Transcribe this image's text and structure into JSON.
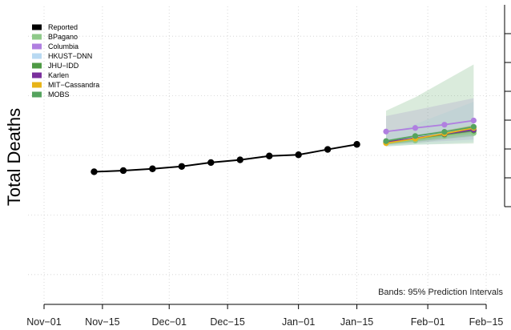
{
  "chart_data": {
    "type": "line",
    "title": "",
    "ylabel": "Total Deaths",
    "note": "Bands: 95% Prediction Intervals",
    "x_tick_labels": [
      "Nov−01",
      "Nov−15",
      "Dec−01",
      "Dec−15",
      "Jan−01",
      "Jan−15",
      "Feb−01",
      "Feb−15"
    ],
    "x_tick_days": [
      0,
      14,
      30,
      44,
      61,
      75,
      92,
      106
    ],
    "xlim": [
      0,
      106
    ],
    "ylim": [
      0,
      100
    ],
    "grid": true,
    "legend_position": "top-left",
    "series": [
      {
        "name": "Reported",
        "color": "#000000",
        "x": [
          12,
          19,
          26,
          33,
          40,
          47,
          54,
          61,
          68,
          75
        ],
        "y": [
          44.5,
          44.9,
          45.5,
          46.3,
          47.6,
          48.5,
          49.8,
          50.2,
          52.0,
          53.7
        ]
      },
      {
        "name": "BPagano",
        "color": "#8fc98a",
        "x": [
          82,
          89,
          96,
          103
        ],
        "y": [
          54.2,
          55.0,
          56.5,
          57.5
        ],
        "lower": [
          53.3,
          54.0,
          55.3,
          56.3
        ],
        "upper": [
          55.2,
          56.1,
          57.6,
          58.8
        ]
      },
      {
        "name": "Columbia",
        "color": "#b07fe0",
        "x": [
          82,
          89,
          96,
          103
        ],
        "y": [
          58.0,
          59.2,
          60.3,
          61.7
        ],
        "lower": [
          53.8,
          54.3,
          54.8,
          55.3
        ],
        "upper": [
          63.2,
          65.2,
          67.2,
          69.2
        ]
      },
      {
        "name": "HKUST−DNN",
        "color": "#b8d9f2",
        "x": [
          82,
          89,
          96,
          103
        ],
        "y": [
          54.6,
          56.3,
          57.8,
          59.5
        ],
        "lower": [
          53.0,
          53.6,
          54.0,
          54.5
        ],
        "upper": [
          57.0,
          60.5,
          64.2,
          68.0
        ]
      },
      {
        "name": "JHU−IDD",
        "color": "#4e9a44",
        "x": [
          82,
          89,
          96,
          103
        ],
        "y": [
          54.4,
          55.7,
          57.0,
          58.3
        ],
        "lower": [
          53.6,
          54.6,
          55.6,
          56.6
        ],
        "upper": [
          55.2,
          56.8,
          58.4,
          60.0
        ]
      },
      {
        "name": "Karlen",
        "color": "#7a2f9c",
        "x": [
          82,
          89,
          96,
          103
        ],
        "y": [
          54.5,
          55.8,
          57.2,
          58.6
        ],
        "lower": [
          54.0,
          55.2,
          56.5,
          57.8
        ],
        "upper": [
          55.0,
          56.4,
          57.9,
          59.4
        ]
      },
      {
        "name": "MIT−Cassandra",
        "color": "#e8b418",
        "x": [
          82,
          89,
          96,
          103
        ],
        "y": [
          54.1,
          55.6,
          57.3,
          59.2
        ],
        "lower": [
          53.6,
          54.9,
          56.4,
          58.1
        ],
        "upper": [
          54.6,
          56.3,
          58.2,
          60.3
        ]
      },
      {
        "name": "MOBS",
        "color": "#55a35e",
        "x": [
          82,
          89,
          96,
          103
        ],
        "y": [
          54.8,
          56.5,
          57.9,
          59.6
        ],
        "lower": [
          53.0,
          53.6,
          53.8,
          54.0
        ],
        "upper": [
          65.0,
          69.5,
          75.0,
          80.5
        ]
      }
    ]
  }
}
